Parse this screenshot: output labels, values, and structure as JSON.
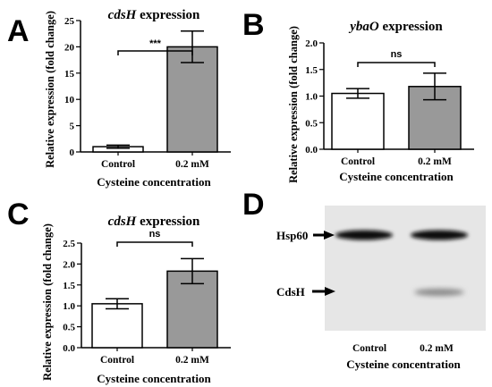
{
  "colors": {
    "control_fill": "#ffffff",
    "treatment_fill": "#999999",
    "gel_background": "#e6e6e6",
    "band": "#1a1a1a",
    "axis": "#000000"
  },
  "chart_data": [
    {
      "panel": "A",
      "type": "bar",
      "title_italic": "cdsH",
      "title_rest": " expression",
      "categories": [
        "Control",
        "0.2 mM"
      ],
      "values": [
        1.0,
        20.0
      ],
      "errors": [
        0.3,
        3.0
      ],
      "xlabel": "Cysteine concentration",
      "ylabel": "Relative expression (fold change)",
      "ylim": [
        0,
        25
      ],
      "yticks": [
        "0",
        "5",
        "10",
        "15",
        "20",
        "25"
      ],
      "significance": "***",
      "grid": false
    },
    {
      "panel": "B",
      "type": "bar",
      "title_italic": "ybaO",
      "title_rest": " expression",
      "categories": [
        "Control",
        "0.2 mM"
      ],
      "values": [
        1.05,
        1.18
      ],
      "errors": [
        0.09,
        0.25
      ],
      "xlabel": "Cysteine concentration",
      "ylabel": "Relative expression (fold change)",
      "ylim": [
        0,
        2.0
      ],
      "yticks": [
        "0.0",
        "0.5",
        "1.0",
        "1.5",
        "2.0"
      ],
      "significance": "ns",
      "grid": false
    },
    {
      "panel": "C",
      "type": "bar",
      "title_italic": "cdsH",
      "title_rest": " expression",
      "categories": [
        "Control",
        "0.2 mM"
      ],
      "values": [
        1.05,
        1.83
      ],
      "errors": [
        0.12,
        0.3
      ],
      "xlabel": "Cysteine concentration",
      "ylabel": "Relative expression (fold change)",
      "ylim": [
        0,
        2.5
      ],
      "yticks": [
        "0.0",
        "0.5",
        "1.0",
        "1.5",
        "2.0",
        "2.5"
      ],
      "significance": "ns",
      "grid": false
    }
  ],
  "gel": {
    "panel": "D",
    "band_labels": [
      "Hsp60",
      "CdsH"
    ],
    "lanes": [
      "Control",
      "0.2 mM"
    ],
    "xlabel": "Cysteine concentration"
  }
}
